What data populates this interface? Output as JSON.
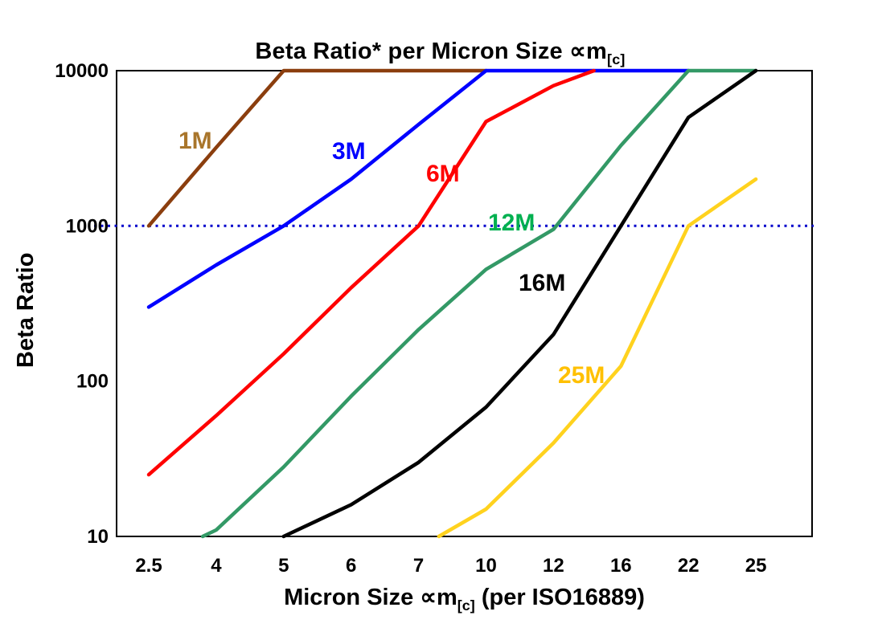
{
  "chart_data": {
    "type": "line",
    "title": {
      "main": "Beta Ratio* per Micron Size ",
      "symbol": "∝m",
      "sub": "[c]"
    },
    "ylabel": "Beta Ratio",
    "xlabel": {
      "pre": "Micron Size ",
      "symbol": "∝m",
      "sub": "[c]",
      "post": " (per ISO16889)"
    },
    "x_categories": [
      "2.5",
      "4",
      "5",
      "6",
      "7",
      "10",
      "12",
      "16",
      "22",
      "25"
    ],
    "y_ticks": [
      "10000",
      "1000",
      "100",
      "10"
    ],
    "y_scale": "log",
    "ylim": [
      10,
      10000
    ],
    "grid": "off",
    "legend": "inline-labels",
    "reference_line": {
      "y": 1000,
      "color": "#0000CC",
      "style": "dotted"
    },
    "series": [
      {
        "name": "1M",
        "color": "#8B3E0E",
        "label_color": "#A9762C",
        "label_pos": [
          222,
          185
        ],
        "points": [
          [
            0,
            1000
          ],
          [
            1,
            3200
          ],
          [
            2,
            10000
          ],
          [
            5,
            10000
          ]
        ]
      },
      {
        "name": "3M",
        "color": "#0000FF",
        "label_color": "#0000FF",
        "label_pos": [
          413,
          198
        ],
        "points": [
          [
            0,
            300
          ],
          [
            1,
            560
          ],
          [
            2,
            1000
          ],
          [
            3,
            2000
          ],
          [
            4,
            4500
          ],
          [
            5,
            10000
          ],
          [
            8,
            10000
          ]
        ]
      },
      {
        "name": "6M",
        "color": "#FF0000",
        "label_color": "#FF0000",
        "label_pos": [
          530,
          226
        ],
        "points": [
          [
            0,
            25
          ],
          [
            1,
            60
          ],
          [
            2,
            150
          ],
          [
            3,
            400
          ],
          [
            4,
            1000
          ],
          [
            5,
            4700
          ],
          [
            6,
            8000
          ],
          [
            6.6,
            10000
          ]
        ]
      },
      {
        "name": "12M",
        "color": "#339966",
        "label_color": "#00B050",
        "label_pos": [
          607,
          287
        ],
        "points": [
          [
            0.8,
            10
          ],
          [
            1,
            11
          ],
          [
            2,
            28
          ],
          [
            3,
            80
          ],
          [
            4,
            215
          ],
          [
            5,
            525
          ],
          [
            6,
            950
          ],
          [
            7,
            3300
          ],
          [
            8,
            10000
          ],
          [
            9,
            10000
          ]
        ]
      },
      {
        "name": "16M",
        "color": "#000000",
        "label_color": "#000000",
        "label_pos": [
          645,
          362
        ],
        "points": [
          [
            2,
            10
          ],
          [
            3,
            16
          ],
          [
            4,
            30
          ],
          [
            5,
            68
          ],
          [
            6,
            200
          ],
          [
            7,
            1000
          ],
          [
            8,
            5000
          ],
          [
            9,
            10000
          ]
        ]
      },
      {
        "name": "25M",
        "color": "#FFD21E",
        "label_color": "#FFC000",
        "label_pos": [
          694,
          477
        ],
        "points": [
          [
            4.3,
            10
          ],
          [
            5,
            15
          ],
          [
            6,
            40
          ],
          [
            7,
            125
          ],
          [
            8,
            1000
          ],
          [
            9,
            2000
          ]
        ]
      }
    ]
  }
}
